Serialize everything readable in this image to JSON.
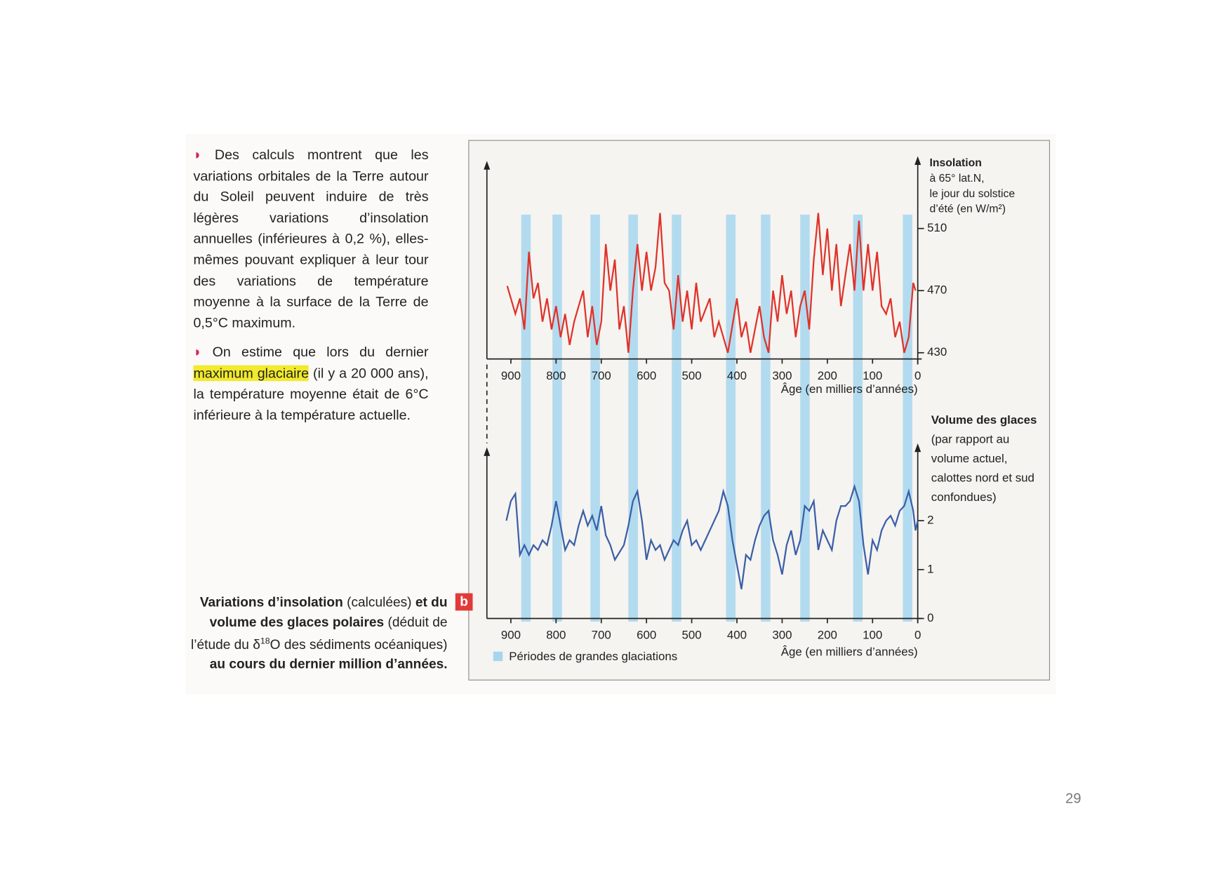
{
  "paragraphs": [
    {
      "text": "Des calculs montrent que les variations orbitales de la Terre autour du Soleil peuvent induire de très légères variations d’insolation annuelles (inférieures à 0,2 %), elles-mêmes pouvant expliquer à leur tour des variations de température moyenne à la surface de la Terre de 0,5°C maximum."
    },
    {
      "before": "On estime que lors du dernier",
      "highlight": "maximum glaciaire",
      "after": "(il y a 20 000 ans), la température moyenne était de 6°C inférieure à la température actuelle."
    }
  ],
  "caption": {
    "badge": "b",
    "parts": [
      {
        "text": "Variations d’insolation",
        "bold": true
      },
      {
        "text": "(calculées)"
      },
      {
        "text": "et du volume des glaces polaires",
        "bold": true
      },
      {
        "text": "(déduit de l’étude du δ"
      },
      {
        "text": "18",
        "sup": true
      },
      {
        "text": "O des sédiments océaniques)"
      },
      {
        "text": "au cours du dernier million d’années.",
        "bold": true
      }
    ]
  },
  "chart_data": [
    {
      "type": "line",
      "y_label": [
        "Insolation",
        "à 65° lat.N,",
        "le jour du solstice",
        "d’été (en W/m²)"
      ],
      "x_label": "Âge (en milliers d’années)",
      "x": [
        908,
        890,
        880,
        870,
        860,
        850,
        840,
        830,
        820,
        810,
        800,
        790,
        780,
        770,
        760,
        740,
        730,
        720,
        710,
        700,
        690,
        680,
        670,
        660,
        650,
        640,
        630,
        620,
        610,
        600,
        590,
        580,
        570,
        560,
        550,
        540,
        530,
        520,
        510,
        500,
        490,
        480,
        460,
        450,
        440,
        420,
        400,
        390,
        380,
        370,
        350,
        340,
        330,
        320,
        310,
        300,
        290,
        280,
        270,
        260,
        250,
        240,
        230,
        220,
        210,
        200,
        190,
        180,
        170,
        160,
        150,
        140,
        130,
        120,
        110,
        100,
        90,
        80,
        70,
        60,
        50,
        40,
        30,
        20,
        10,
        5
      ],
      "series": [
        {
          "color": "#e0322a",
          "values": [
            473,
            455,
            465,
            445,
            495,
            465,
            475,
            450,
            465,
            445,
            460,
            440,
            455,
            435,
            450,
            470,
            440,
            460,
            435,
            450,
            500,
            470,
            490,
            445,
            460,
            430,
            470,
            500,
            470,
            495,
            470,
            485,
            520,
            475,
            470,
            445,
            480,
            450,
            470,
            445,
            475,
            450,
            465,
            440,
            450,
            430,
            465,
            440,
            450,
            430,
            460,
            440,
            430,
            470,
            450,
            480,
            455,
            470,
            440,
            460,
            470,
            445,
            490,
            520,
            480,
            510,
            470,
            500,
            460,
            480,
            500,
            470,
            515,
            470,
            500,
            470,
            495,
            460,
            455,
            465,
            440,
            450,
            430,
            440,
            475,
            470
          ]
        }
      ],
      "xlim": [
        953,
        0
      ],
      "xticks": [
        900,
        800,
        700,
        600,
        500,
        400,
        300,
        200,
        100,
        0
      ],
      "ylim": [
        426,
        553
      ],
      "yticks": [
        430,
        470,
        510
      ]
    },
    {
      "type": "line",
      "y_label": [
        "Volume des glaces",
        "(par rapport au",
        "volume actuel,",
        "calottes nord et sud",
        "confondues)"
      ],
      "x_label": "Âge (en milliers d’années)",
      "x": [
        910,
        900,
        890,
        880,
        870,
        860,
        850,
        840,
        830,
        820,
        810,
        800,
        790,
        780,
        770,
        760,
        750,
        740,
        730,
        720,
        710,
        700,
        690,
        680,
        670,
        650,
        640,
        630,
        620,
        610,
        600,
        590,
        580,
        570,
        560,
        550,
        540,
        530,
        520,
        510,
        500,
        490,
        480,
        470,
        460,
        440,
        430,
        420,
        410,
        400,
        390,
        380,
        370,
        360,
        350,
        340,
        330,
        320,
        310,
        300,
        290,
        280,
        270,
        260,
        250,
        240,
        230,
        220,
        210,
        200,
        190,
        180,
        170,
        160,
        150,
        140,
        130,
        120,
        110,
        100,
        90,
        80,
        70,
        60,
        50,
        40,
        30,
        20,
        10,
        5,
        0
      ],
      "series": [
        {
          "color": "#3b5fa8",
          "values": [
            2.0,
            2.4,
            2.55,
            1.3,
            1.5,
            1.3,
            1.5,
            1.4,
            1.6,
            1.5,
            1.9,
            2.4,
            1.9,
            1.4,
            1.6,
            1.5,
            1.9,
            2.2,
            1.9,
            2.1,
            1.8,
            2.3,
            1.7,
            1.5,
            1.2,
            1.5,
            1.9,
            2.4,
            2.6,
            2.0,
            1.2,
            1.6,
            1.4,
            1.5,
            1.2,
            1.4,
            1.6,
            1.5,
            1.8,
            2.0,
            1.5,
            1.6,
            1.4,
            1.6,
            1.8,
            2.2,
            2.6,
            2.3,
            1.6,
            1.1,
            0.6,
            1.3,
            1.2,
            1.6,
            1.9,
            2.1,
            2.2,
            1.6,
            1.3,
            0.9,
            1.5,
            1.8,
            1.3,
            1.6,
            2.3,
            2.2,
            2.4,
            1.4,
            1.8,
            1.6,
            1.4,
            2.0,
            2.3,
            2.3,
            2.4,
            2.7,
            2.4,
            1.5,
            0.9,
            1.6,
            1.4,
            1.8,
            2.0,
            2.1,
            1.9,
            2.2,
            2.3,
            2.6,
            2.2,
            1.8,
            2.0
          ]
        }
      ],
      "xlim": [
        953,
        0
      ],
      "xticks": [
        900,
        800,
        700,
        600,
        500,
        400,
        300,
        200,
        100,
        0
      ],
      "ylim": [
        0,
        3.5
      ],
      "yticks": [
        0,
        1,
        2
      ],
      "glaciations": {
        "label": "Périodes de grandes glaciations",
        "color": "#a6d6ee",
        "ranges": [
          [
            877,
            856
          ],
          [
            808,
            787
          ],
          [
            724,
            703
          ],
          [
            640,
            619
          ],
          [
            544,
            523
          ],
          [
            424,
            403
          ],
          [
            347,
            326
          ],
          [
            260,
            239
          ],
          [
            143,
            122
          ],
          [
            33,
            12
          ]
        ]
      }
    }
  ],
  "page_number": "29"
}
